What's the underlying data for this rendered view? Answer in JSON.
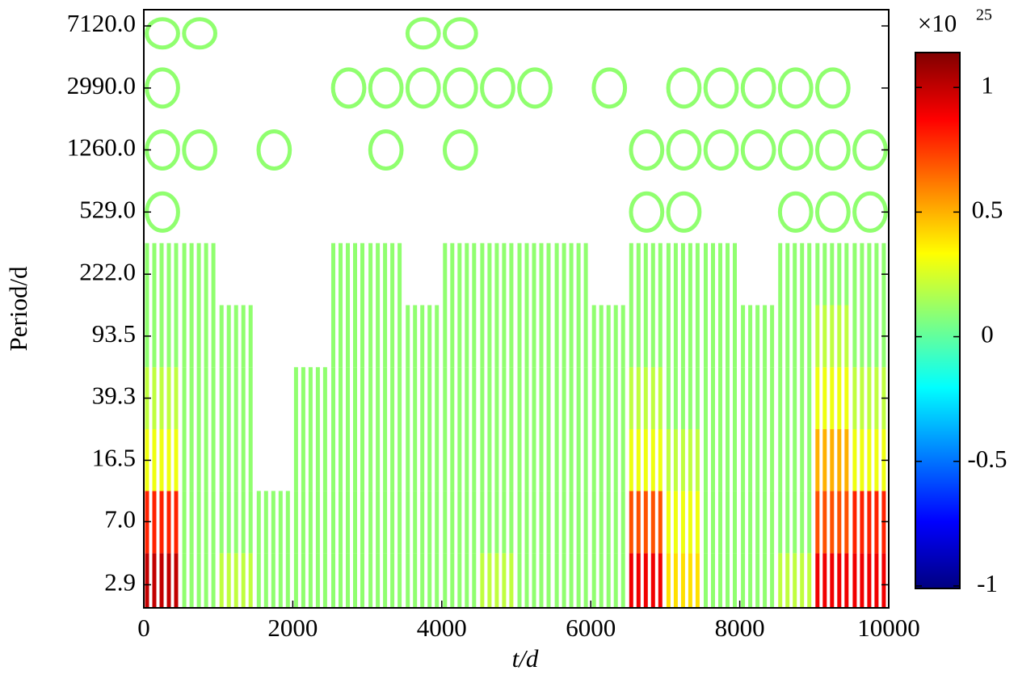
{
  "chart_data": {
    "type": "contour",
    "x_label": "t/d",
    "y_label": "Period/d",
    "xlim": [
      0,
      10000
    ],
    "xticks": [
      0,
      2000,
      4000,
      6000,
      8000,
      10000
    ],
    "ylim": [
      2.1,
      8930
    ],
    "y_log": true,
    "yticks": [
      {
        "value": 2.9,
        "label": "2.9"
      },
      {
        "value": 7,
        "label": "7.0"
      },
      {
        "value": 16.5,
        "label": "16.5"
      },
      {
        "value": 39.3,
        "label": "39.3"
      },
      {
        "value": 93.5,
        "label": "93.5"
      },
      {
        "value": 222,
        "label": "222.0"
      },
      {
        "value": 529,
        "label": "529.0"
      },
      {
        "value": 1260,
        "label": "1260.0"
      },
      {
        "value": 2990,
        "label": "2990.0"
      },
      {
        "value": 7120,
        "label": "7120.0"
      }
    ],
    "x": [
      250,
      750,
      1250,
      1750,
      2250,
      2750,
      3250,
      3750,
      4250,
      4750,
      5250,
      5750,
      6250,
      6750,
      7250,
      7750,
      8250,
      8750,
      9250,
      9750
    ],
    "period": [
      2.9,
      7,
      16.5,
      39.3,
      93.5,
      222,
      529,
      1260,
      2990,
      7120
    ],
    "z": [
      [
        1.0,
        0.1,
        0.2,
        0.1,
        0.1,
        0.1,
        0.1,
        0.1,
        0.1,
        0.2,
        0.1,
        0.1,
        0.1,
        0.9,
        0.4,
        0.1,
        0.1,
        0.2,
        0.9,
        0.9
      ],
      [
        0.8,
        0.1,
        0.1,
        0.1,
        0.1,
        0.1,
        0.1,
        0.1,
        0.1,
        0.1,
        0.1,
        0.1,
        0.1,
        0.7,
        0.3,
        0.1,
        0.1,
        0.1,
        0.7,
        0.8
      ],
      [
        0.3,
        0.1,
        0.1,
        null,
        0.1,
        0.1,
        0.1,
        0.1,
        0.1,
        0.1,
        0.1,
        0.1,
        0.1,
        0.3,
        0.2,
        0.1,
        0.1,
        0.1,
        0.5,
        0.3
      ],
      [
        0.2,
        0.1,
        0.1,
        null,
        0.1,
        0.1,
        0.1,
        0.1,
        0.1,
        0.1,
        0.1,
        0.1,
        0.1,
        0.2,
        0.1,
        0.1,
        0.1,
        0.1,
        0.3,
        0.2
      ],
      [
        0.1,
        0.1,
        0.1,
        null,
        null,
        0.1,
        0.1,
        0.1,
        0.1,
        0.1,
        0.1,
        0.1,
        0.1,
        0.1,
        0.1,
        0.1,
        0.1,
        0.1,
        0.2,
        0.1
      ],
      [
        0.1,
        0.1,
        null,
        null,
        null,
        0.1,
        0.1,
        null,
        0.1,
        0.1,
        0.1,
        0.1,
        null,
        0.1,
        0.1,
        0.1,
        null,
        0.1,
        0.1,
        0.1
      ],
      [
        0.1,
        null,
        null,
        null,
        null,
        null,
        null,
        null,
        null,
        null,
        null,
        null,
        null,
        0.1,
        0.1,
        null,
        null,
        0.1,
        0.1,
        0.1
      ],
      [
        0.1,
        0.1,
        null,
        0.1,
        null,
        null,
        0.1,
        null,
        0.1,
        null,
        null,
        null,
        null,
        0.1,
        0.1,
        0.1,
        0.1,
        0.1,
        0.1,
        0.1
      ],
      [
        0.1,
        null,
        null,
        null,
        null,
        0.1,
        0.1,
        0.1,
        0.1,
        0.1,
        0.1,
        null,
        0.1,
        null,
        0.1,
        0.1,
        0.1,
        0.1,
        0.1,
        null
      ],
      [
        0.1,
        0.1,
        null,
        null,
        null,
        null,
        null,
        0.1,
        0.1,
        null,
        null,
        null,
        null,
        null,
        null,
        null,
        null,
        null,
        null,
        null
      ]
    ],
    "colorbar_label": "×10",
    "colorbar_exponent": "25",
    "clim": [
      -1.01,
      1.14
    ],
    "cticks": [
      1,
      0.5,
      0,
      -0.5,
      -1
    ]
  }
}
